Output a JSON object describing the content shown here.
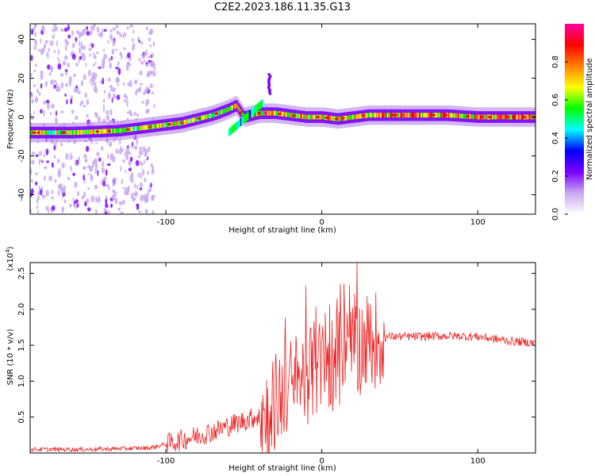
{
  "title": "C2E2.2023.186.11.35.G13",
  "chart_data": [
    {
      "type": "heatmap",
      "xlabel": "Height of straight line (km)",
      "ylabel": "Frequency (Hz)",
      "xlim": [
        -187,
        137
      ],
      "ylim": [
        -50,
        48
      ],
      "x_ticks": [
        -100,
        0,
        100
      ],
      "y_ticks": [
        -40,
        -20,
        0,
        20,
        40
      ],
      "colorbar": {
        "label": "Normalized spectral amplitude",
        "range": [
          0.0,
          1.0
        ],
        "ticks": [
          0.0,
          0.2,
          0.4,
          0.6,
          0.8
        ],
        "colormap": [
          "#ffffff",
          "#c8a8f0",
          "#7b00ff",
          "#0000ff",
          "#00ffff",
          "#00ff00",
          "#ffff00",
          "#ff8000",
          "#ff0000",
          "#ff00a0"
        ]
      },
      "ridge": {
        "x": [
          -187,
          -160,
          -130,
          -110,
          -90,
          -70,
          -60,
          -55,
          -50,
          -40,
          -30,
          -20,
          -10,
          0,
          10,
          20,
          30,
          40,
          60,
          80,
          100,
          120,
          137
        ],
        "y": [
          -8,
          -8,
          -7,
          -5,
          -3,
          1,
          4,
          6,
          0,
          2,
          2,
          1,
          0,
          0,
          -1,
          0,
          1,
          1,
          1,
          1,
          0,
          0,
          0
        ]
      }
    },
    {
      "type": "line",
      "xlabel": "Height of straight line (km)",
      "ylabel": "SNR (10 * v/v)",
      "y_multiplier": "(x10^4)",
      "xlim": [
        -187,
        137
      ],
      "ylim": [
        0,
        2.65
      ],
      "x_ticks": [
        -100,
        0,
        100
      ],
      "y_ticks": [
        0.5,
        1.0,
        1.5,
        2.0,
        2.5
      ],
      "color": "#ee2222",
      "envelope": {
        "x": [
          -187,
          -150,
          -110,
          -90,
          -70,
          -50,
          -35,
          -25,
          -15,
          -5,
          5,
          15,
          25,
          35,
          45,
          60,
          80,
          100,
          120,
          137
        ],
        "y": [
          0.05,
          0.05,
          0.07,
          0.18,
          0.3,
          0.45,
          0.55,
          0.85,
          1.0,
          1.15,
          1.25,
          1.35,
          1.5,
          1.6,
          1.62,
          1.62,
          1.63,
          1.62,
          1.56,
          1.53
        ]
      }
    }
  ]
}
